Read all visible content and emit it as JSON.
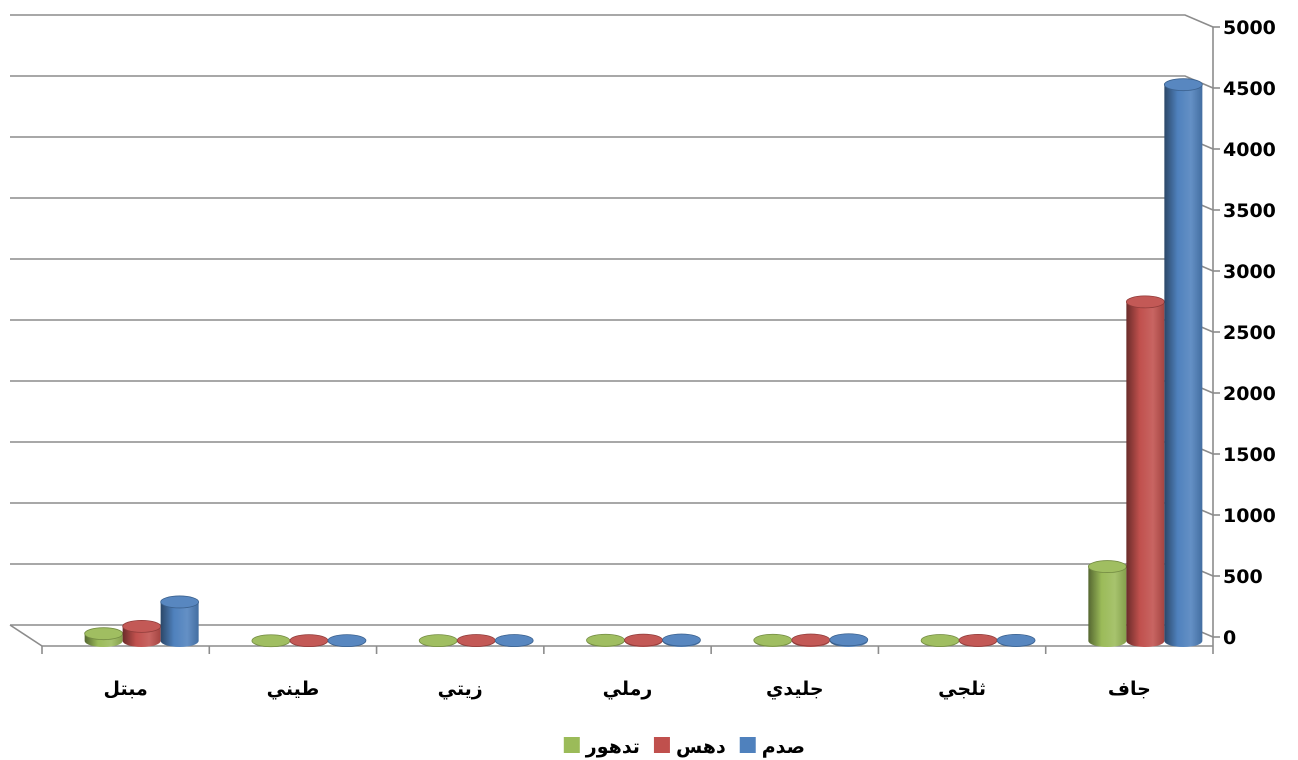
{
  "chart_data": {
    "type": "bar",
    "categories": [
      "جاف",
      "ثلجي",
      "جليدي",
      "رملي",
      "زيتي",
      "طيني",
      "مبتل"
    ],
    "series": [
      {
        "name": "صدم",
        "values": [
          4560,
          5,
          10,
          8,
          4,
          3,
          320
        ],
        "color": "#4F81BD"
      },
      {
        "name": "دهس",
        "values": [
          2780,
          5,
          8,
          7,
          4,
          3,
          120
        ],
        "color": "#C0504D"
      },
      {
        "name": "تدهور",
        "values": [
          610,
          4,
          6,
          6,
          3,
          2,
          60
        ],
        "color": "#9BBB59"
      }
    ],
    "ylim": [
      0,
      5000
    ],
    "yticks": [
      "0",
      "500",
      "1000",
      "1500",
      "2000",
      "2500",
      "3000",
      "3500",
      "4000",
      "4500",
      "5000"
    ],
    "grid": true,
    "legend_position": "bottom",
    "legend_order": [
      "صدم",
      "دهس",
      "تدهور"
    ],
    "style": "3d-cylinder",
    "axis_side": "right"
  }
}
